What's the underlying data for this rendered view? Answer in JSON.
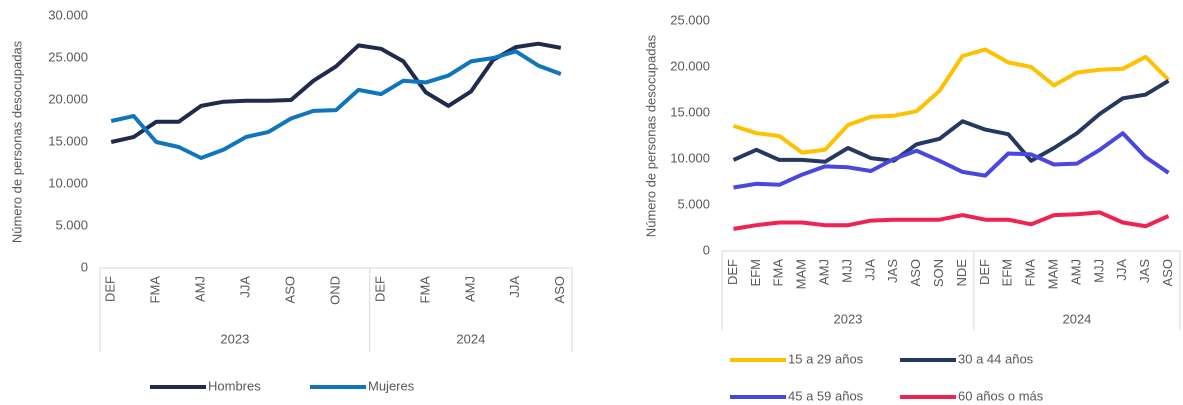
{
  "chart_data": [
    {
      "type": "line",
      "y_label": "Número de personas desocupadas",
      "groups": [
        {
          "name": "2023",
          "categories": [
            "DEF",
            null,
            "FMA",
            null,
            "AMJ",
            null,
            "JJA",
            null,
            "ASO",
            null,
            "OND",
            null
          ]
        },
        {
          "name": "2024",
          "categories": [
            "DEF",
            null,
            "FMA",
            null,
            "AMJ",
            null,
            "JJA",
            null,
            "ASO"
          ]
        }
      ],
      "series": [
        {
          "name": "Hombres",
          "color": "#1f2a4c",
          "values": [
            15000,
            15600,
            17400,
            17400,
            19300,
            19800,
            19900,
            19900,
            20000,
            22300,
            24000,
            26500,
            26100,
            24600,
            20900,
            19300,
            21000,
            24800,
            26300,
            26700,
            26200
          ]
        },
        {
          "name": "Mujeres",
          "color": "#0f75bc",
          "values": [
            17500,
            18100,
            15000,
            14400,
            13100,
            14100,
            15600,
            16200,
            17800,
            18700,
            18800,
            21200,
            20700,
            22300,
            22100,
            22900,
            24600,
            25000,
            25800,
            24100,
            23100
          ]
        }
      ],
      "ylim": [
        0,
        30000
      ],
      "yticks": [
        0,
        {
          "value": 5000,
          "label": "5.000"
        },
        {
          "value": 10000,
          "label": "10.000"
        },
        {
          "value": 15000,
          "label": "15.000"
        },
        {
          "value": 20000,
          "label": "20.000"
        },
        {
          "value": 25000,
          "label": "25.000"
        },
        {
          "value": 30000,
          "label": "30.000"
        }
      ],
      "grid": false
    },
    {
      "type": "line",
      "y_label": "Número de personas desocupadas",
      "groups": [
        {
          "name": "2023",
          "categories": [
            "DEF",
            "EFM",
            "FMA",
            "MAM",
            "AMJ",
            "MJJ",
            "JJA",
            "JAS",
            "ASO",
            "SON",
            "NDE"
          ]
        },
        {
          "name": "2024",
          "categories": [
            "DEF",
            "EFM",
            "FMA",
            "MAM",
            "AMJ",
            "MJJ",
            "JJA",
            "JAS",
            "ASO"
          ]
        }
      ],
      "series": [
        {
          "name": "15 a 29 años",
          "color": "#ffc000",
          "values": [
            13600,
            12800,
            12500,
            10700,
            11000,
            13700,
            14600,
            14700,
            15200,
            17400,
            21200,
            21900,
            20500,
            20000,
            18000,
            19400,
            19700,
            19800,
            21100,
            18600
          ]
        },
        {
          "name": "30 a 44 años",
          "color": "#24395f",
          "values": [
            9900,
            11000,
            9900,
            9900,
            9700,
            11200,
            10100,
            9800,
            11600,
            12200,
            14100,
            13200,
            12700,
            9800,
            11200,
            12800,
            14900,
            16600,
            17000,
            18500
          ]
        },
        {
          "name": "45 a 59 años",
          "color": "#4a46e0",
          "values": [
            6900,
            7300,
            7200,
            8300,
            9200,
            9100,
            8700,
            10000,
            10900,
            9800,
            8600,
            8200,
            10600,
            10500,
            9400,
            9500,
            11000,
            12800,
            10200,
            8500
          ]
        },
        {
          "name": "60 años o más",
          "color": "#ee2352",
          "values": [
            2400,
            2800,
            3100,
            3100,
            2800,
            2800,
            3300,
            3400,
            3400,
            3400,
            3900,
            3400,
            3400,
            2900,
            3900,
            4000,
            4200,
            3100,
            2700,
            3800
          ]
        }
      ],
      "ylim": [
        0,
        25000
      ],
      "yticks": [
        0,
        {
          "value": 5000,
          "label": "5.000"
        },
        {
          "value": 10000,
          "label": "10.000"
        },
        {
          "value": 15000,
          "label": "15.000"
        },
        {
          "value": 20000,
          "label": "20.000"
        },
        {
          "value": 25000,
          "label": "25.000"
        }
      ],
      "grid": false
    }
  ]
}
